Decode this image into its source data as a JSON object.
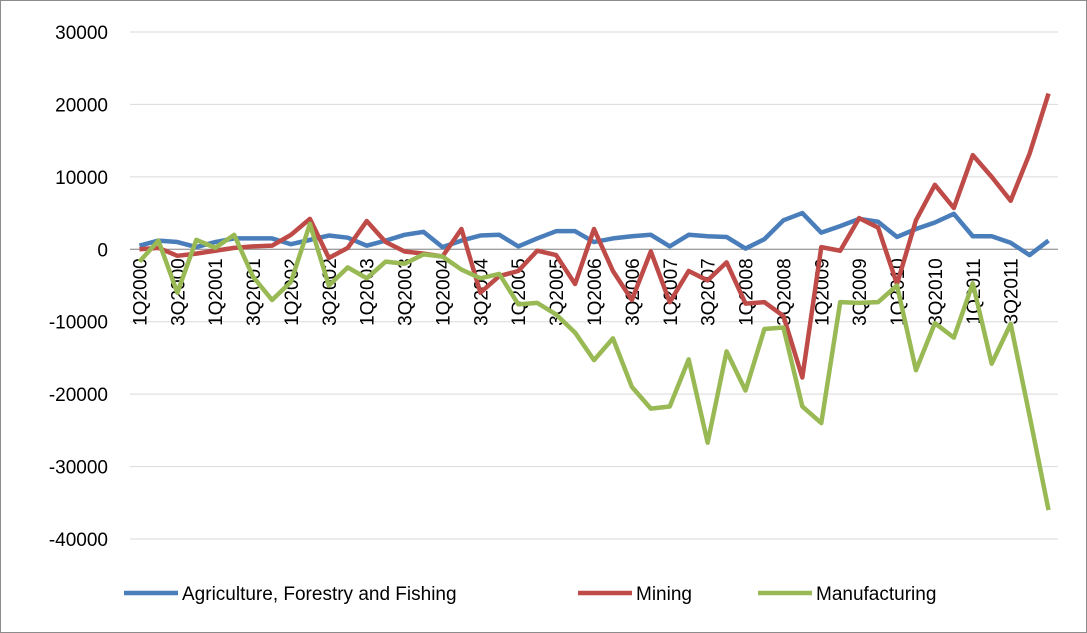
{
  "chart_data": {
    "type": "line",
    "categories": [
      "1Q2000",
      null,
      "3Q2000",
      null,
      "1Q2001",
      null,
      "3Q2001",
      null,
      "1Q2002",
      null,
      "3Q2002",
      null,
      "1Q2003",
      null,
      "3Q2003",
      null,
      "1Q2004",
      null,
      "3Q2004",
      null,
      "1Q2005",
      null,
      "3Q2005",
      null,
      "1Q2006",
      null,
      "3Q2006",
      null,
      "1Q2007",
      null,
      "3Q2007",
      null,
      "1Q2008",
      null,
      "3Q2008",
      null,
      "1Q2009",
      null,
      "3Q2009",
      null,
      "1Q2010",
      null,
      "3Q2010",
      null,
      "1Q2011",
      null,
      "3Q2011",
      null,
      null
    ],
    "series": [
      {
        "name": "Agriculture, Forestry and Fishing",
        "color": "#4a7ebb",
        "values": [
          500,
          1200,
          1000,
          300,
          1000,
          1500,
          1500,
          1500,
          700,
          1300,
          1900,
          1600,
          500,
          1200,
          2000,
          2400,
          300,
          1200,
          1900,
          2000,
          400,
          1500,
          2500,
          2500,
          1000,
          1500,
          1800,
          2000,
          400,
          2000,
          1800,
          1700,
          100,
          1400,
          4000,
          5000,
          2300,
          3200,
          4200,
          3800,
          1700,
          2800,
          3700,
          4900,
          1800,
          1800,
          900,
          -800,
          1200
        ]
      },
      {
        "name": "Mining",
        "color": "#be4b48",
        "values": [
          0,
          200,
          -900,
          -600,
          -200,
          200,
          400,
          500,
          2000,
          4200,
          -1200,
          200,
          3900,
          1000,
          -300,
          -600,
          -1000,
          2800,
          -6000,
          -3700,
          -3000,
          -200,
          -800,
          -4800,
          2800,
          -3000,
          -7000,
          -300,
          -7300,
          -3000,
          -4300,
          -1800,
          -7500,
          -7300,
          -9200,
          -17700,
          300,
          -200,
          4300,
          3000,
          -4800,
          4000,
          8900,
          5700,
          13000,
          10000,
          6700,
          13200,
          21500
        ]
      },
      {
        "name": "Manufacturing",
        "color": "#98b954",
        "values": [
          -1700,
          1200,
          -6000,
          1300,
          200,
          2000,
          -3800,
          -7000,
          -4500,
          3500,
          -5000,
          -2500,
          -4000,
          -1700,
          -2000,
          -700,
          -1000,
          -2800,
          -4000,
          -3400,
          -7600,
          -7400,
          -9000,
          -11500,
          -15300,
          -12300,
          -19000,
          -22000,
          -21700,
          -15200,
          -26700,
          -14100,
          -19500,
          -11000,
          -10800,
          -21700,
          -24000,
          -7300,
          -7400,
          -7300,
          -5000,
          -16700,
          -10200,
          -12200,
          -4700,
          -15800,
          -10300,
          -23000,
          -36000
        ]
      }
    ],
    "ylim": [
      -40000,
      30000
    ],
    "yticks": [
      -40000,
      -30000,
      -20000,
      -10000,
      0,
      10000,
      20000,
      30000
    ],
    "grid": true,
    "legend": "bottom"
  }
}
